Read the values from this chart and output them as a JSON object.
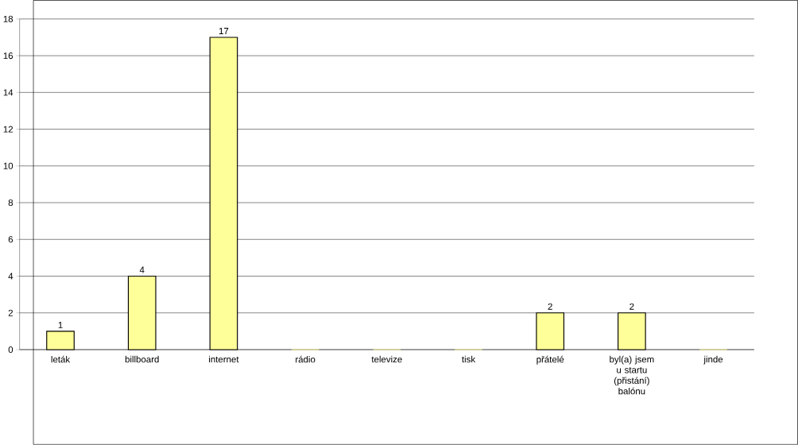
{
  "chart_data": {
    "type": "bar",
    "categories": [
      "leták",
      "billboard",
      "internet",
      "rádio",
      "televize",
      "tisk",
      "přátelé",
      "byl(a) jsem u startu (přistání) balónu",
      "jinde"
    ],
    "values": [
      1,
      4,
      17,
      0,
      0,
      0,
      2,
      2,
      0
    ],
    "value_labels": [
      "1",
      "4",
      "17",
      null,
      null,
      null,
      "2",
      "2",
      null
    ],
    "color": "#ffff99",
    "ylim": [
      0,
      18
    ],
    "yticks": [
      0,
      2,
      4,
      6,
      8,
      10,
      12,
      14,
      16,
      18
    ],
    "grid": "y"
  }
}
